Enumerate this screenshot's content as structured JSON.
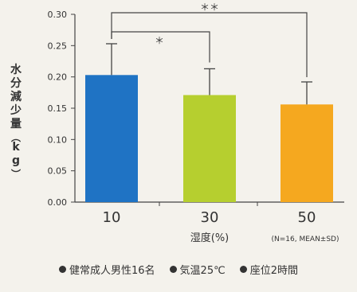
{
  "chart_data": {
    "type": "bar",
    "categories": [
      "10",
      "30",
      "50"
    ],
    "values": [
      0.203,
      0.171,
      0.156
    ],
    "errors": [
      0.05,
      0.042,
      0.036
    ],
    "colors": [
      "#1f73c4",
      "#b6cf2f",
      "#f5a81f"
    ],
    "xlabel": "湿度(%)",
    "ylabel": "水分減少量(kg)",
    "yticks": [
      "0.00",
      "0.05",
      "0.10",
      "0.15",
      "0.20",
      "0.25",
      "0.30"
    ],
    "ylim": [
      0,
      0.3
    ],
    "footnote": "(N=16, MEAN±SD)",
    "significance": [
      {
        "from": 0,
        "to": 2,
        "label": "＊＊"
      },
      {
        "from": 0,
        "to": 1,
        "label": "＊"
      }
    ]
  },
  "notes": [
    {
      "icon": "bullet-icon",
      "text": "健常成人男性16名"
    },
    {
      "icon": "bullet-icon",
      "text": "気温25℃"
    },
    {
      "icon": "bullet-icon",
      "text": "座位2時間"
    }
  ]
}
